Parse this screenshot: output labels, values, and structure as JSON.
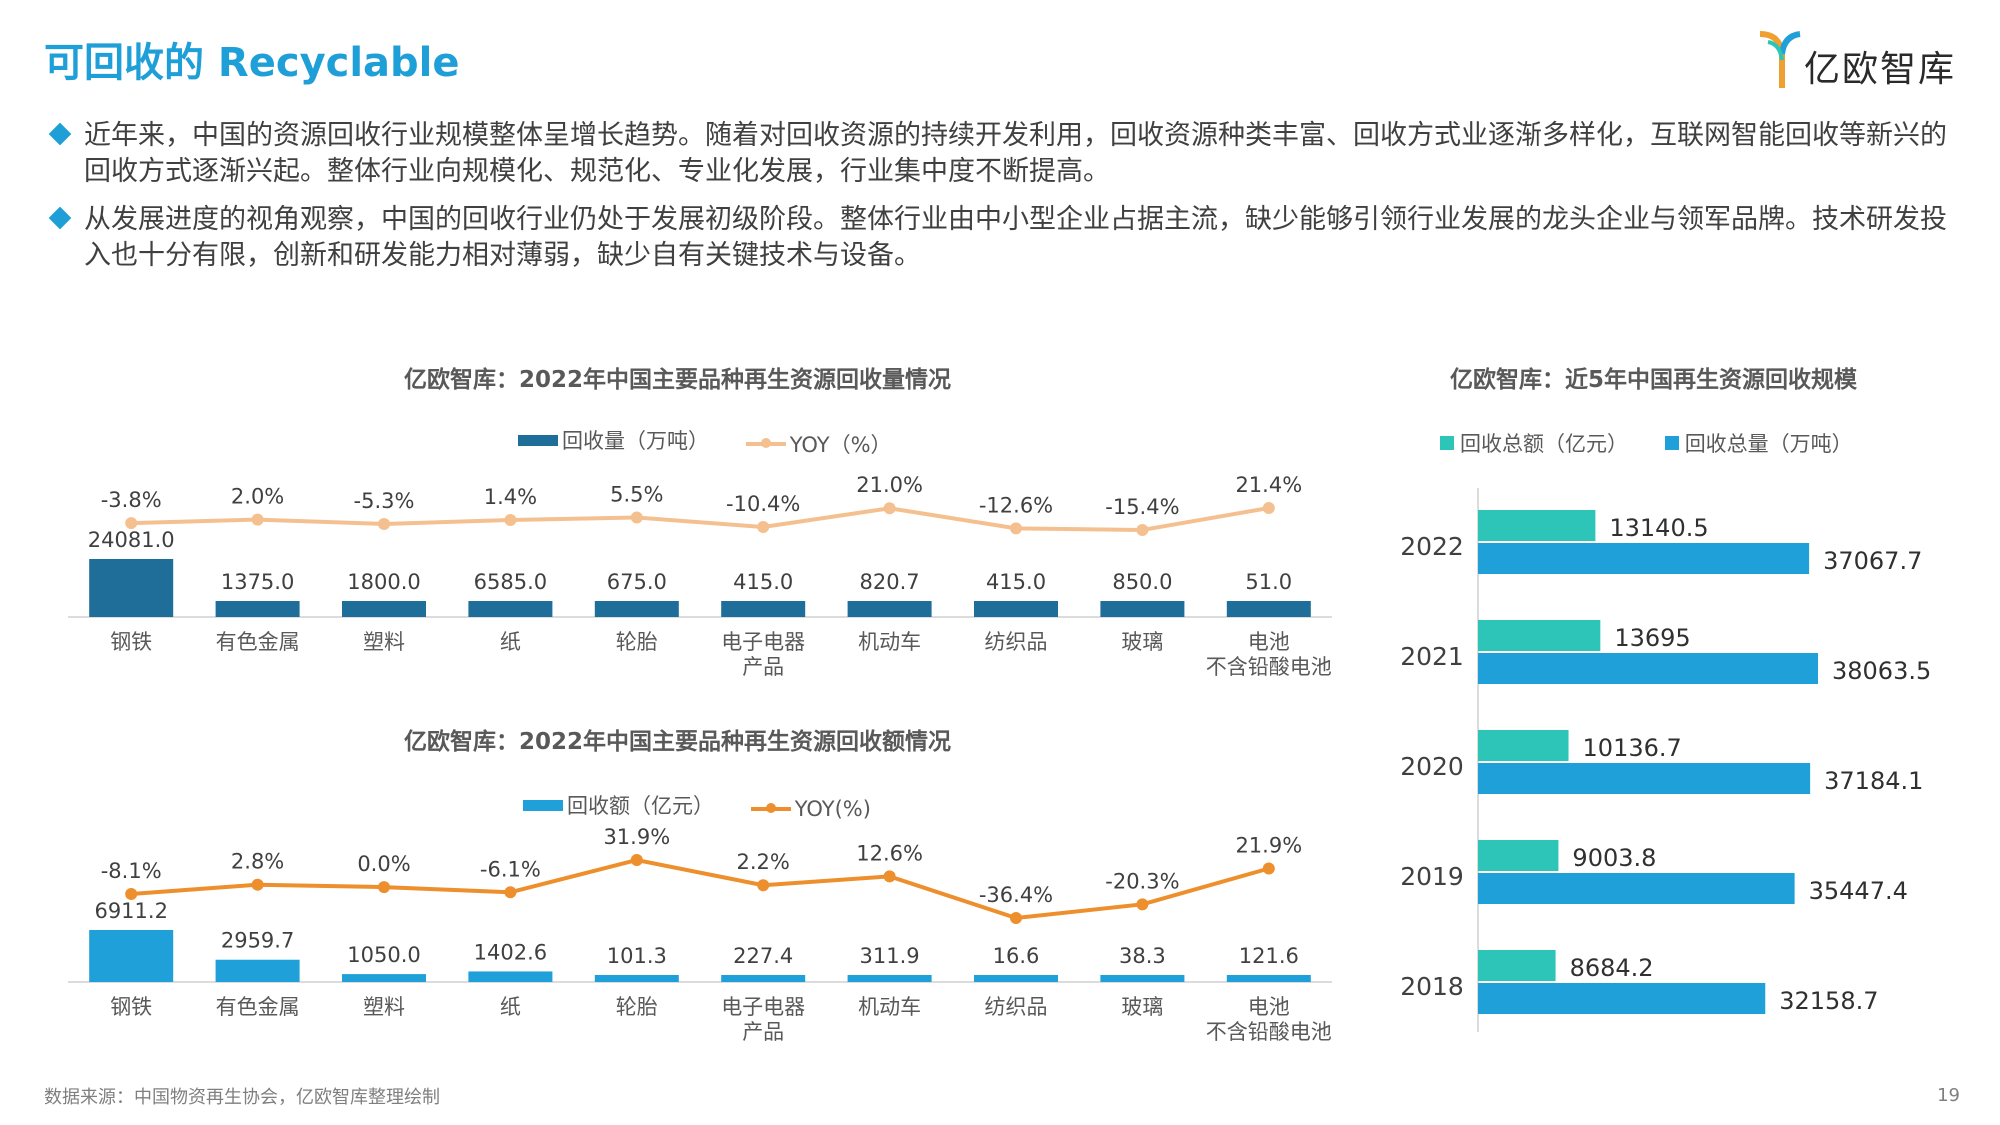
{
  "header": {
    "title": "可回收的 Recyclable",
    "logo_text": "亿欧智库"
  },
  "bullets": [
    "近年来，中国的资源回收行业规模整体呈增长趋势。随着对回收资源的持续开发利用，回收资源种类丰富、回收方式业逐渐多样化，互联网智能回收等新兴的回收方式逐渐兴起。整体行业向规模化、规范化、专业化发展，行业集中度不断提高。",
    "从发展进度的视角观察，中国的回收行业仍处于发展初级阶段。整体行业由中小型企业占据主流，缺少能够引领行业发展的龙头企业与领军品牌。技术研发投入也十分有限，创新和研发能力相对薄弱，缺少自有关键技术与设备。"
  ],
  "chart_data": [
    {
      "type": "bar",
      "title": "亿欧智库：2022年中国主要品种再生资源回收量情况",
      "categories": [
        [
          "钢铁"
        ],
        [
          "有色金属"
        ],
        [
          "塑料"
        ],
        [
          "纸"
        ],
        [
          "轮胎"
        ],
        [
          "电子电器",
          "产品"
        ],
        [
          "机动车"
        ],
        [
          "纺织品"
        ],
        [
          "玻璃"
        ],
        [
          "电池",
          "不含铅酸电池"
        ]
      ],
      "series": [
        {
          "name": "回收量（万吨）",
          "kind": "bar",
          "color": "#1f6e99",
          "values": [
            24081.0,
            1375.0,
            1800.0,
            6585.0,
            675.0,
            415.0,
            820.7,
            415.0,
            850.0,
            51.0
          ],
          "labels": [
            "24081.0",
            "1375.0",
            "1800.0",
            "6585.0",
            "675.0",
            "415.0",
            "820.7",
            "415.0",
            "850.0",
            "51.0"
          ]
        },
        {
          "name": "YOY（%）",
          "kind": "line",
          "color": "#f5c08f",
          "values": [
            -3.8,
            2.0,
            -5.3,
            1.4,
            5.5,
            -10.4,
            21.0,
            -12.6,
            -15.4,
            21.4
          ],
          "labels": [
            "-3.8%",
            "2.0%",
            "-5.3%",
            "1.4%",
            "5.5%",
            "-10.4%",
            "21.0%",
            "-12.6%",
            "-15.4%",
            "21.4%"
          ]
        }
      ]
    },
    {
      "type": "bar",
      "title": "亿欧智库：2022年中国主要品种再生资源回收额情况",
      "categories": [
        [
          "钢铁"
        ],
        [
          "有色金属"
        ],
        [
          "塑料"
        ],
        [
          "纸"
        ],
        [
          "轮胎"
        ],
        [
          "电子电器",
          "产品"
        ],
        [
          "机动车"
        ],
        [
          "纺织品"
        ],
        [
          "玻璃"
        ],
        [
          "电池",
          "不含铅酸电池"
        ]
      ],
      "series": [
        {
          "name": "回收额（亿元）",
          "kind": "bar",
          "color": "#1fa0d9",
          "values": [
            6911.2,
            2959.7,
            1050.0,
            1402.6,
            101.3,
            227.4,
            311.9,
            16.6,
            38.3,
            121.6
          ],
          "labels": [
            "6911.2",
            "2959.7",
            "1050.0",
            "1402.6",
            "101.3",
            "227.4",
            "311.9",
            "16.6",
            "38.3",
            "121.6"
          ]
        },
        {
          "name": "YOY(%)",
          "kind": "line",
          "color": "#ed8f2c",
          "values": [
            -8.1,
            2.8,
            0.0,
            -6.1,
            31.9,
            2.2,
            12.6,
            -36.4,
            -20.3,
            21.9
          ],
          "labels": [
            "-8.1%",
            "2.8%",
            "0.0%",
            "-6.1%",
            "31.9%",
            "2.2%",
            "12.6%",
            "-36.4%",
            "-20.3%",
            "21.9%"
          ]
        }
      ]
    },
    {
      "type": "bar",
      "orientation": "horizontal",
      "title": "亿欧智库：近5年中国再生资源回收规模",
      "categories": [
        "2022",
        "2021",
        "2020",
        "2019",
        "2018"
      ],
      "series": [
        {
          "name": "回收总额（亿元）",
          "color": "#2cc5b8",
          "values": [
            13140.5,
            13695,
            10136.7,
            9003.8,
            8684.2
          ],
          "labels": [
            "13140.5",
            "13695",
            "10136.7",
            "9003.8",
            "8684.2"
          ]
        },
        {
          "name": "回收总量（万吨）",
          "color": "#1fa0d9",
          "values": [
            37067.7,
            38063.5,
            37184.1,
            35447.4,
            32158.7
          ],
          "labels": [
            "37067.7",
            "38063.5",
            "37184.1",
            "35447.4",
            "32158.7"
          ]
        }
      ]
    }
  ],
  "footer": {
    "source": "数据来源：中国物资再生协会，亿欧智库整理绘制",
    "page_number": "19"
  }
}
